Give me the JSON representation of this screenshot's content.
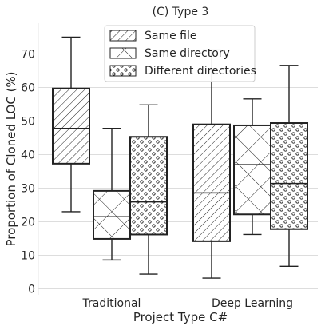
{
  "chart_data": {
    "type": "box",
    "title": "(C) Type 3",
    "xlabel": "Project Type C#",
    "ylabel": "Proportion of Cloned LOC (%)",
    "ylim": [
      0,
      75
    ],
    "yticks": [
      0,
      10,
      20,
      30,
      40,
      50,
      60,
      70
    ],
    "grid": true,
    "legend_position": "top-center",
    "categories": [
      "Traditional",
      "Deep Learning"
    ],
    "series": [
      {
        "name": "Same file",
        "pattern": "diagonal-hatch",
        "boxes": [
          {
            "whisker_low": 23.0,
            "q1": 37.3,
            "median": 47.8,
            "q3": 59.7,
            "whisker_high": 75.0
          },
          {
            "whisker_low": 3.2,
            "q1": 14.2,
            "median": 28.6,
            "q3": 49.0,
            "whisker_high": 71.2
          }
        ]
      },
      {
        "name": "Same directory",
        "pattern": "cross-hatch",
        "boxes": [
          {
            "whisker_low": 8.6,
            "q1": 14.9,
            "median": 21.5,
            "q3": 29.2,
            "whisker_high": 47.8
          },
          {
            "whisker_low": 16.2,
            "q1": 22.2,
            "median": 37.0,
            "q3": 48.7,
            "whisker_high": 56.6
          }
        ]
      },
      {
        "name": "Different directories",
        "pattern": "dots",
        "boxes": [
          {
            "whisker_low": 4.4,
            "q1": 16.2,
            "median": 25.9,
            "q3": 45.3,
            "whisker_high": 54.8
          },
          {
            "whisker_low": 6.7,
            "q1": 17.8,
            "median": 31.4,
            "q3": 49.4,
            "whisker_high": 66.6
          }
        ]
      }
    ],
    "colors": {
      "grid": "#dddddd",
      "stroke": "#222222",
      "text": "#262626",
      "box_fill": "#ffffff"
    }
  }
}
